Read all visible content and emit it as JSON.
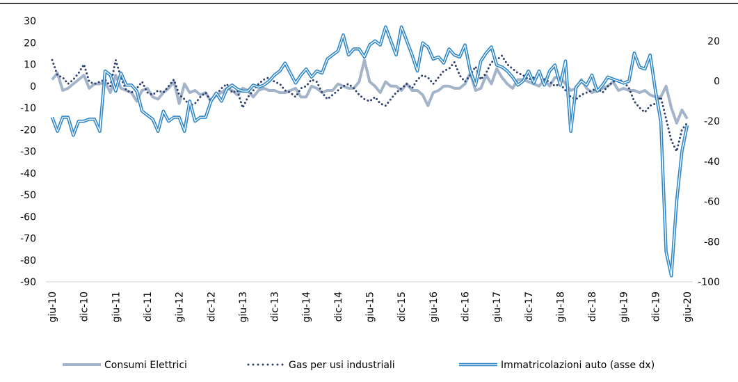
{
  "chart_data": {
    "type": "line",
    "categories": [
      "giu-10",
      null,
      null,
      null,
      null,
      null,
      "dic-10",
      null,
      null,
      null,
      null,
      null,
      "giu-11",
      null,
      null,
      null,
      null,
      null,
      "dic-11",
      null,
      null,
      null,
      null,
      null,
      "giu-12",
      null,
      null,
      null,
      null,
      null,
      "dic-12",
      null,
      null,
      null,
      null,
      null,
      "giu-13",
      null,
      null,
      null,
      null,
      null,
      "dic-13",
      null,
      null,
      null,
      null,
      null,
      "giu-14",
      null,
      null,
      null,
      null,
      null,
      "dic-14",
      null,
      null,
      null,
      null,
      null,
      "giu-15",
      null,
      null,
      null,
      null,
      null,
      "dic-15",
      null,
      null,
      null,
      null,
      null,
      "giu-16",
      null,
      null,
      null,
      null,
      null,
      "dic-16",
      null,
      null,
      null,
      null,
      null,
      "giu-17",
      null,
      null,
      null,
      null,
      null,
      "dic-17",
      null,
      null,
      null,
      null,
      null,
      "giu-18",
      null,
      null,
      null,
      null,
      null,
      "dic-18",
      null,
      null,
      null,
      null,
      null,
      "giu-19",
      null,
      null,
      null,
      null,
      null,
      "dic-19",
      null,
      null,
      null,
      null,
      null,
      "giu-20"
    ],
    "series": [
      {
        "name": "Consumi Elettrici",
        "color": "#a3b3c9",
        "style": "solid",
        "values": [
          3,
          6,
          -2,
          -1,
          1,
          3,
          5,
          -1,
          1,
          1,
          2,
          -3,
          5,
          -1,
          -2,
          -3,
          -7,
          -2,
          -1,
          -5,
          -6,
          -3,
          -1,
          2,
          -8,
          1,
          -3,
          -2,
          -4,
          -3,
          -7,
          -4,
          -3,
          -1,
          -2,
          -4,
          -1,
          -2,
          -5,
          -2,
          -1,
          -2,
          -2,
          -3,
          -3,
          -2,
          -1,
          -5,
          -5,
          0,
          -1,
          -3,
          -2,
          -2,
          1,
          0,
          -1,
          -1,
          2,
          12,
          2,
          0,
          -3,
          2,
          0,
          0,
          -2,
          1,
          -2,
          -2,
          -4,
          -9,
          -3,
          -2,
          0,
          0,
          -1,
          -1,
          1,
          6,
          -2,
          -1,
          5,
          1,
          8,
          4,
          1,
          -1,
          3,
          3,
          2,
          1,
          0,
          3,
          0,
          4,
          4,
          1,
          -2,
          -1,
          3,
          -1,
          -3,
          -2,
          -1,
          0,
          2,
          -2,
          -1,
          -2,
          -2,
          -3,
          -2,
          -4,
          -5,
          -5,
          0,
          -10,
          -17,
          -11,
          -15
        ]
      },
      {
        "name": "Gas per usi industriali",
        "color": "#2f3f6e",
        "style": "dotted",
        "values": [
          12,
          5,
          4,
          1,
          3,
          6,
          10,
          2,
          1,
          2,
          3,
          0,
          12,
          4,
          -2,
          -3,
          -1,
          2,
          -3,
          -4,
          -2,
          -3,
          0,
          3,
          -4,
          -6,
          -9,
          -8,
          -5,
          -3,
          -7,
          -4,
          -1,
          1,
          -3,
          -2,
          -10,
          -5,
          -2,
          1,
          3,
          4,
          2,
          1,
          -2,
          -3,
          -5,
          -1,
          0,
          3,
          2,
          -3,
          -6,
          -4,
          -2,
          0,
          1,
          -1,
          -4,
          -6,
          -7,
          -5,
          -8,
          -9,
          -6,
          -3,
          -1,
          1,
          -1,
          3,
          5,
          4,
          1,
          4,
          7,
          8,
          11,
          5,
          2,
          5,
          9,
          3,
          6,
          11,
          12,
          14,
          10,
          8,
          6,
          5,
          3,
          4,
          6,
          3,
          2,
          0,
          1,
          -2,
          -5,
          -6,
          -4,
          -3,
          -2,
          -1,
          -3,
          0,
          2,
          3,
          2,
          -1,
          -7,
          -10,
          -12,
          -9,
          -8,
          -5,
          -15,
          -25,
          -30,
          -20,
          -17
        ]
      },
      {
        "name": "Immatricolazioni auto (asse dx)",
        "color": "#2e86c8",
        "style": "double",
        "axis": "y2",
        "values": [
          -18,
          -25,
          -18,
          -18,
          -27,
          -20,
          -20,
          -19,
          -19,
          -25,
          5,
          3,
          -5,
          4,
          -2,
          -2,
          -5,
          -15,
          -17,
          -19,
          -25,
          -15,
          -20,
          -18,
          -18,
          -25,
          -10,
          -20,
          -18,
          -18,
          -10,
          -6,
          -10,
          -4,
          -2,
          -4,
          -5,
          -5,
          -2,
          -3,
          -2,
          0,
          3,
          5,
          9,
          4,
          -1,
          3,
          6,
          2,
          5,
          4,
          11,
          13,
          15,
          23,
          13,
          16,
          16,
          12,
          18,
          20,
          18,
          27,
          20,
          13,
          27,
          20,
          13,
          5,
          19,
          17,
          11,
          12,
          9,
          16,
          13,
          12,
          18,
          5,
          -2,
          10,
          14,
          17,
          8,
          7,
          5,
          2,
          -2,
          0,
          5,
          -1,
          5,
          -2,
          5,
          8,
          -2,
          10,
          -25,
          -3,
          0,
          -2,
          3,
          -5,
          -2,
          2,
          1,
          0,
          -1,
          0,
          14,
          7,
          6,
          13,
          -5,
          -20,
          -85,
          -97,
          -60,
          -35,
          -22
        ]
      }
    ],
    "ylim": [
      -90,
      30
    ],
    "yticks": [
      -90,
      -80,
      -70,
      -60,
      -50,
      -40,
      -30,
      -20,
      -10,
      0,
      10,
      20,
      30
    ],
    "y2lim": [
      -100,
      30
    ],
    "y2ticks": [
      -100,
      -80,
      -60,
      -40,
      -20,
      0,
      20
    ],
    "grid": false,
    "legend": "bottom"
  }
}
